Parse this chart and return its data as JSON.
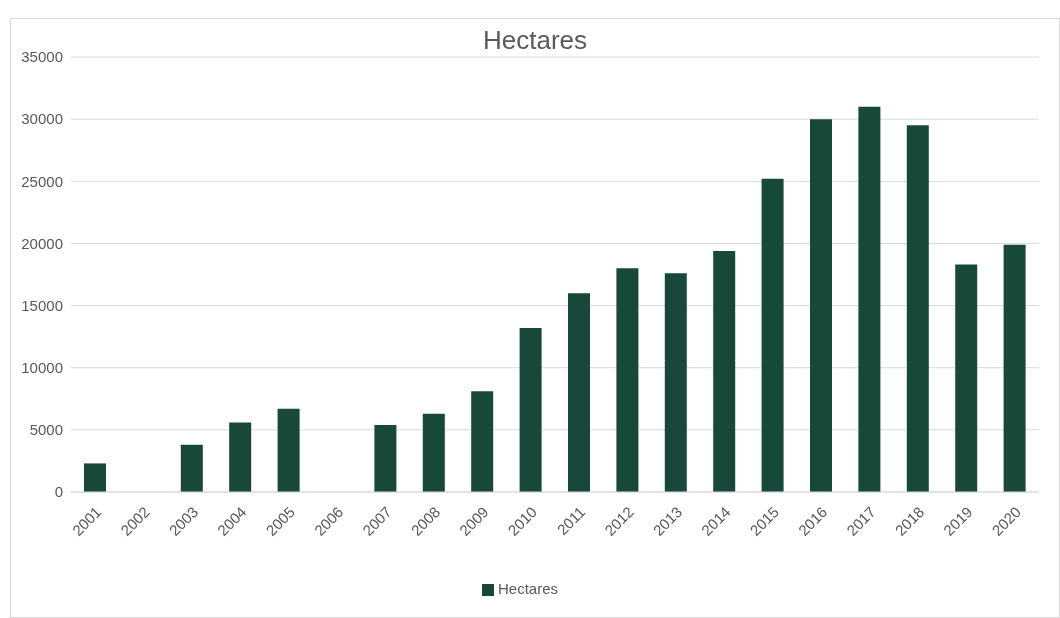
{
  "chart_data": {
    "type": "bar",
    "title": "Hectares",
    "categories": [
      "2001",
      "2002",
      "2003",
      "2004",
      "2005",
      "2006",
      "2007",
      "2008",
      "2009",
      "2010",
      "2011",
      "2012",
      "2013",
      "2014",
      "2015",
      "2016",
      "2017",
      "2018",
      "2019",
      "2020"
    ],
    "series": [
      {
        "name": "Hectares",
        "color": "#18483a",
        "values": [
          2300,
          null,
          3800,
          5600,
          6700,
          null,
          5400,
          6300,
          8100,
          13200,
          16000,
          18000,
          17600,
          19400,
          25200,
          30000,
          31000,
          29500,
          18300,
          19900
        ]
      }
    ],
    "ylim": [
      0,
      35000
    ],
    "yticks": [
      0,
      5000,
      10000,
      15000,
      20000,
      25000,
      30000,
      35000
    ],
    "grid": "y",
    "legend": "bottom"
  }
}
